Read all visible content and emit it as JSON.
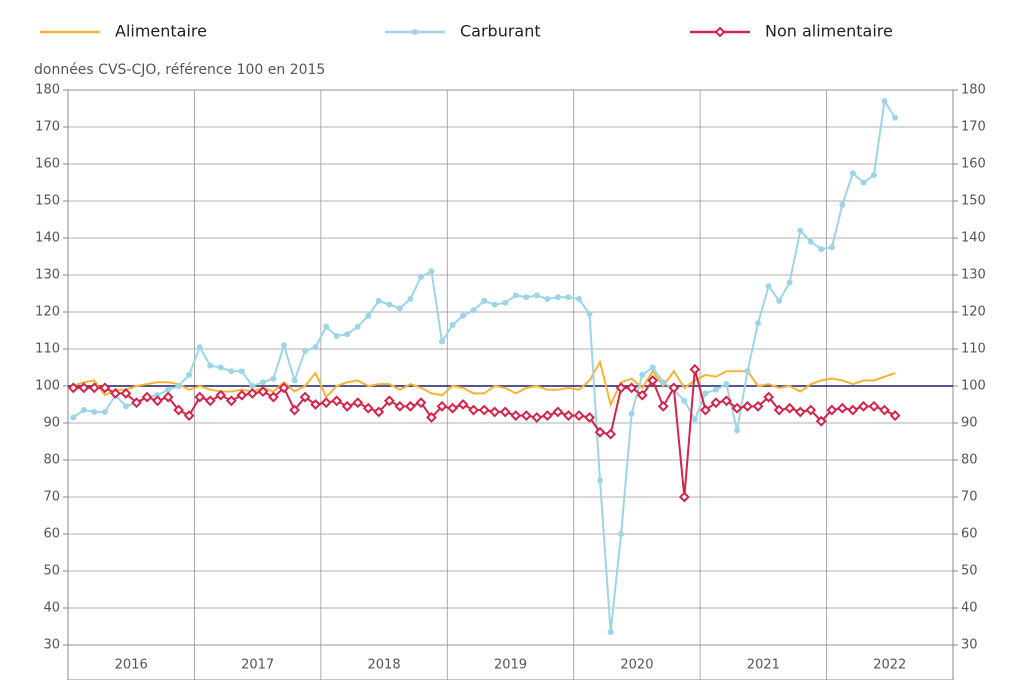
{
  "chart_data": {
    "type": "line",
    "subtitle": "données CVS-CJO, référence 100 en 2015",
    "xlim": [
      2016,
      2023
    ],
    "xticks": [
      {
        "value": 2016.5,
        "label": "2016"
      },
      {
        "value": 2017.5,
        "label": "2017"
      },
      {
        "value": 2018.5,
        "label": "2018"
      },
      {
        "value": 2019.5,
        "label": "2019"
      },
      {
        "value": 2020.5,
        "label": "2020"
      },
      {
        "value": 2021.5,
        "label": "2021"
      },
      {
        "value": 2022.5,
        "label": "2022"
      }
    ],
    "xgrid": [
      2017,
      2018,
      2019,
      2020,
      2021,
      2022
    ],
    "ylim": [
      30,
      180
    ],
    "yticks": [
      30,
      40,
      50,
      60,
      70,
      80,
      90,
      100,
      110,
      120,
      130,
      140,
      150,
      160,
      170,
      180
    ],
    "reference_line": 100,
    "grid": true,
    "x": [
      2016.042,
      2016.125,
      2016.208,
      2016.292,
      2016.375,
      2016.458,
      2016.542,
      2016.625,
      2016.708,
      2016.792,
      2016.875,
      2016.958,
      2017.042,
      2017.125,
      2017.208,
      2017.292,
      2017.375,
      2017.458,
      2017.542,
      2017.625,
      2017.708,
      2017.792,
      2017.875,
      2017.958,
      2018.042,
      2018.125,
      2018.208,
      2018.292,
      2018.375,
      2018.458,
      2018.542,
      2018.625,
      2018.708,
      2018.792,
      2018.875,
      2018.958,
      2019.042,
      2019.125,
      2019.208,
      2019.292,
      2019.375,
      2019.458,
      2019.542,
      2019.625,
      2019.708,
      2019.792,
      2019.875,
      2019.958,
      2020.042,
      2020.125,
      2020.208,
      2020.292,
      2020.375,
      2020.458,
      2020.542,
      2020.625,
      2020.708,
      2020.792,
      2020.875,
      2020.958,
      2021.042,
      2021.125,
      2021.208,
      2021.292,
      2021.375,
      2021.458,
      2021.542,
      2021.625,
      2021.708,
      2021.792,
      2021.875,
      2021.958,
      2022.042,
      2022.125,
      2022.208,
      2022.292,
      2022.375,
      2022.458,
      2022.542
    ],
    "series": [
      {
        "name": "Alimentaire",
        "color": "#f7b334",
        "marker": "none",
        "values": [
          100,
          101,
          101.5,
          97.5,
          99,
          99,
          100,
          100.5,
          101,
          101,
          100.5,
          99,
          100,
          99,
          98.5,
          98.5,
          99,
          98.5,
          99.5,
          98.5,
          101,
          98.5,
          100,
          103.5,
          97,
          100,
          101,
          101.5,
          100,
          100.5,
          100.5,
          99,
          100.5,
          99.5,
          98,
          97.5,
          100,
          99.5,
          98,
          98,
          100,
          99.5,
          98,
          99.5,
          100,
          99,
          99,
          99.5,
          99,
          101.5,
          106.5,
          95,
          101,
          102,
          99.5,
          104,
          100,
          104,
          99.5,
          101.5,
          103,
          102.5,
          104,
          104,
          104,
          100,
          100.5,
          99.5,
          100,
          98.5,
          100.5,
          101.5,
          102,
          101.5,
          100.5,
          101.5,
          101.5,
          102.5,
          103.5
        ]
      },
      {
        "name": "Carburant",
        "color": "#9dd5e8",
        "marker": "circle",
        "values": [
          91.5,
          93.5,
          93,
          93,
          97.5,
          94.5,
          95.5,
          97,
          97.5,
          99,
          100,
          103,
          110.5,
          105.5,
          105,
          104,
          104,
          100,
          101,
          102,
          111,
          101.5,
          109.5,
          110.5,
          116,
          113.5,
          114,
          116,
          119,
          123,
          122,
          121,
          123.5,
          129.5,
          131,
          112,
          116.5,
          119,
          120.5,
          123,
          122,
          122.5,
          124.5,
          124,
          124.5,
          123.5,
          124,
          124,
          123.5,
          119.5,
          74.5,
          33.5,
          60,
          92.5,
          103,
          105,
          101,
          99,
          96,
          91,
          98,
          99,
          100.5,
          88,
          104,
          117,
          127,
          123,
          128,
          142,
          139,
          137,
          137.5,
          149,
          157.5,
          155,
          157,
          177,
          172.5
        ]
      },
      {
        "name": "Non alimentaire",
        "color": "#d6234a",
        "marker": "diamond",
        "values": [
          99.5,
          99.5,
          99.5,
          99.5,
          98,
          98,
          95.5,
          97,
          96,
          97,
          93.5,
          92,
          97,
          96,
          97.5,
          96,
          97.5,
          98,
          98.5,
          97,
          99.5,
          93.5,
          97,
          95,
          95.5,
          96,
          94.5,
          95.5,
          94,
          93,
          96,
          94.5,
          94.5,
          95.5,
          91.5,
          94.5,
          94,
          95,
          93.5,
          93.5,
          93,
          93,
          92,
          92,
          91.5,
          92,
          93,
          92,
          92,
          91.5,
          87.5,
          87,
          99.5,
          99.5,
          97.5,
          101.5,
          94.5,
          99.5,
          70,
          104.5,
          93.5,
          95.5,
          96,
          94,
          94.5,
          94.5,
          97,
          93.5,
          94,
          93,
          93.5,
          90.5,
          93.5,
          94,
          93.5,
          94.5,
          94.5,
          93.5,
          92
        ]
      }
    ]
  }
}
